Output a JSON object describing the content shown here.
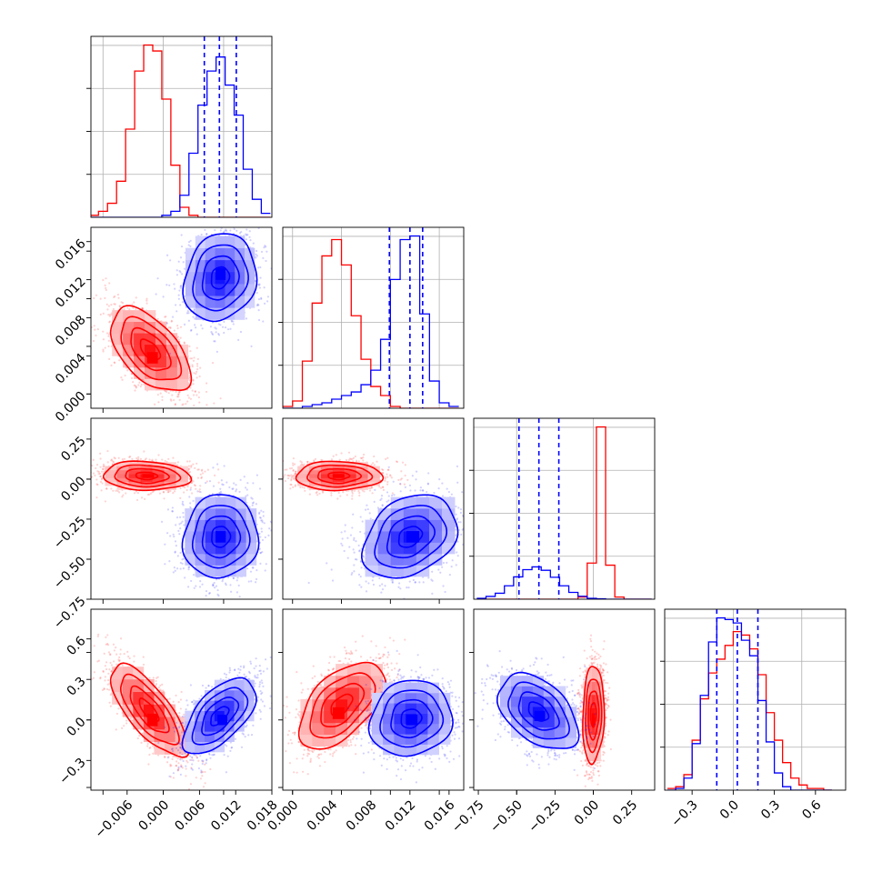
{
  "figure": {
    "type": "corner-plot",
    "n_parameters": 4,
    "colors": {
      "series_red": "#ff0000",
      "series_blue": "#0000ff"
    }
  },
  "chart_data": [
    {
      "type": "histogram",
      "panel": "diag-0",
      "grid": true,
      "xlim": [
        -0.012,
        0.018
      ],
      "xticks": [],
      "x": [
        -0.0115,
        -0.01,
        -0.0085,
        -0.007,
        -0.0055,
        -0.004,
        -0.0025,
        -0.001,
        0.0005,
        0.002,
        0.0035,
        0.005,
        0.0065,
        0.008,
        0.0095,
        0.011,
        0.0125,
        0.014,
        0.0155,
        0.017
      ],
      "series": [
        {
          "color": "#ff0000",
          "values": [
            0.01,
            0.03,
            0.07,
            0.18,
            0.44,
            0.73,
            0.86,
            0.83,
            0.59,
            0.26,
            0.05,
            0.01,
            0,
            0,
            0,
            0,
            0,
            0,
            0,
            0
          ]
        },
        {
          "color": "#0000ff",
          "values": [
            0,
            0,
            0,
            0,
            0,
            0,
            0,
            0,
            0.01,
            0.03,
            0.11,
            0.32,
            0.56,
            0.73,
            0.8,
            0.66,
            0.51,
            0.24,
            0.09,
            0.02
          ]
        }
      ],
      "quantile_lines": {
        "color": "#0000ff",
        "values": [
          0.0068,
          0.0093,
          0.0121
        ]
      }
    },
    {
      "type": "histogram",
      "panel": "diag-1",
      "grid": true,
      "xlim": [
        -0.001,
        0.0175
      ],
      "xticks": [],
      "x": [
        -0.0005,
        0.0005,
        0.0015,
        0.0025,
        0.0035,
        0.0045,
        0.0055,
        0.0065,
        0.0075,
        0.0085,
        0.0095,
        0.0105,
        0.0115,
        0.0125,
        0.0135,
        0.0145,
        0.0155,
        0.0165
      ],
      "series": [
        {
          "color": "#ff0000",
          "values": [
            0.01,
            0.04,
            0.26,
            0.58,
            0.84,
            0.93,
            0.79,
            0.51,
            0.27,
            0.12,
            0.07,
            0.01,
            0,
            0,
            0,
            0,
            0,
            0
          ]
        },
        {
          "color": "#0000ff",
          "values": [
            0,
            0,
            0.01,
            0.02,
            0.03,
            0.05,
            0.07,
            0.09,
            0.13,
            0.21,
            0.38,
            0.71,
            0.93,
            0.95,
            0.52,
            0.15,
            0.03,
            0.01
          ]
        }
      ],
      "quantile_lines": {
        "color": "#0000ff",
        "values": [
          0.0099,
          0.012,
          0.0133
        ]
      }
    },
    {
      "type": "histogram",
      "panel": "diag-2",
      "grid": true,
      "xlim": [
        -0.78,
        0.4
      ],
      "xticks": [],
      "x": [
        -0.73,
        -0.67,
        -0.61,
        -0.55,
        -0.49,
        -0.43,
        -0.37,
        -0.31,
        -0.25,
        -0.19,
        -0.13,
        -0.07,
        -0.01,
        0.05,
        0.11,
        0.17,
        0.23,
        0.29,
        0.35
      ],
      "series": [
        {
          "color": "#ff0000",
          "values": [
            0,
            0,
            0,
            0,
            0,
            0,
            0,
            0,
            0,
            0,
            0,
            0.01,
            0.17,
            0.81,
            0.16,
            0.01,
            0,
            0,
            0
          ]
        },
        {
          "color": "#0000ff",
          "values": [
            0.004,
            0.013,
            0.028,
            0.063,
            0.105,
            0.139,
            0.152,
            0.136,
            0.103,
            0.063,
            0.032,
            0.014,
            0.004,
            0.002,
            0,
            0,
            0,
            0,
            0
          ]
        }
      ],
      "quantile_lines": {
        "color": "#0000ff",
        "values": [
          -0.485,
          -0.355,
          -0.225
        ]
      }
    },
    {
      "type": "histogram",
      "panel": "diag-3",
      "grid": true,
      "xlim": [
        -0.5,
        0.82
      ],
      "xticks": [
        "-0.3",
        "0.0",
        "0.3",
        "0.6"
      ],
      "x": [
        -0.45,
        -0.39,
        -0.33,
        -0.27,
        -0.21,
        -0.15,
        -0.09,
        -0.03,
        0.03,
        0.09,
        0.15,
        0.21,
        0.27,
        0.33,
        0.39,
        0.45,
        0.51,
        0.57,
        0.63,
        0.69
      ],
      "series": [
        {
          "color": "#ff0000",
          "values": [
            0.01,
            0.02,
            0.09,
            0.29,
            0.53,
            0.68,
            0.76,
            0.84,
            0.92,
            0.9,
            0.82,
            0.67,
            0.45,
            0.29,
            0.16,
            0.07,
            0.03,
            0.01,
            0.01,
            0
          ]
        },
        {
          "color": "#0000ff",
          "values": [
            0,
            0.01,
            0.07,
            0.27,
            0.55,
            0.86,
            1.0,
            0.99,
            0.97,
            0.87,
            0.78,
            0.52,
            0.28,
            0.1,
            0.02,
            0,
            0,
            0,
            0,
            0
          ]
        }
      ],
      "quantile_lines": {
        "color": "#0000ff",
        "values": [
          -0.12,
          0.03,
          0.18
        ]
      }
    },
    {
      "type": "scatter-contour",
      "panel": "r1c0",
      "xlim": [
        -0.012,
        0.018
      ],
      "ylim": [
        -0.0015,
        0.0175
      ],
      "yticks": [
        "0.000",
        "0.004",
        "0.008",
        "0.012",
        "0.016"
      ],
      "series": [
        {
          "color": "#ff0000",
          "center": [
            -0.0022,
            0.0046
          ],
          "sigma": [
            0.0033,
            0.0022
          ],
          "rho": -0.55,
          "max_bin": [
            -0.0018,
            0.0038
          ]
        },
        {
          "color": "#0000ff",
          "center": [
            0.0094,
            0.0122
          ],
          "sigma": [
            0.003,
            0.0023
          ],
          "rho": 0.15,
          "max_bin": [
            0.0095,
            0.0126
          ]
        }
      ]
    },
    {
      "type": "scatter-contour",
      "panel": "r2c0",
      "xlim": [
        -0.012,
        0.018
      ],
      "ylim": [
        -0.75,
        0.38
      ],
      "yticks": [
        "-0.75",
        "-0.50",
        "-0.25",
        "0.00",
        "0.25"
      ],
      "series": [
        {
          "color": "#ff0000",
          "center": [
            -0.0028,
            0.02
          ],
          "sigma": [
            0.0036,
            0.045
          ],
          "rho": -0.1,
          "max_bin": [
            -0.0025,
            0.02
          ]
        },
        {
          "color": "#0000ff",
          "center": [
            0.0095,
            -0.36
          ],
          "sigma": [
            0.0031,
            0.13
          ],
          "rho": 0.05,
          "max_bin": [
            0.0095,
            -0.36
          ]
        }
      ]
    },
    {
      "type": "scatter-contour",
      "panel": "r2c1",
      "xlim": [
        -0.001,
        0.0175
      ],
      "ylim": [
        -0.75,
        0.38
      ],
      "series": [
        {
          "color": "#ff0000",
          "center": [
            0.0047,
            0.02
          ],
          "sigma": [
            0.0022,
            0.045
          ],
          "rho": 0.0,
          "max_bin": [
            0.0047,
            0.02
          ]
        },
        {
          "color": "#0000ff",
          "center": [
            0.012,
            -0.36
          ],
          "sigma": [
            0.0024,
            0.13
          ],
          "rho": 0.3,
          "max_bin": [
            0.0123,
            -0.36
          ]
        }
      ]
    },
    {
      "type": "scatter-contour",
      "panel": "r3c0",
      "xlim": [
        -0.012,
        0.018
      ],
      "ylim": [
        -0.52,
        0.82
      ],
      "yticks": [
        "-0.3",
        "0.0",
        "0.3",
        "0.6"
      ],
      "xticks": [
        "-0.006",
        "0.000",
        "0.006",
        "0.012",
        "0.018"
      ],
      "series": [
        {
          "color": "#ff0000",
          "center": [
            -0.0024,
            0.07
          ],
          "sigma": [
            0.0032,
            0.17
          ],
          "rho": -0.75,
          "max_bin": [
            -0.0018,
            0.0
          ]
        },
        {
          "color": "#0000ff",
          "center": [
            0.0093,
            0.03
          ],
          "sigma": [
            0.003,
            0.14
          ],
          "rho": 0.6,
          "max_bin": [
            0.0098,
            0.0
          ]
        }
      ]
    },
    {
      "type": "scatter-contour",
      "panel": "r3c1",
      "xlim": [
        -0.001,
        0.0175
      ],
      "ylim": [
        -0.52,
        0.82
      ],
      "xticks": [
        "0.000",
        "0.004",
        "0.008",
        "0.012",
        "0.016"
      ],
      "series": [
        {
          "color": "#ff0000",
          "center": [
            0.005,
            0.11
          ],
          "sigma": [
            0.0022,
            0.16
          ],
          "rho": 0.55,
          "max_bin": [
            0.0047,
            0.05
          ]
        },
        {
          "color": "#0000ff",
          "center": [
            0.0121,
            0.01
          ],
          "sigma": [
            0.0021,
            0.14
          ],
          "rho": 0.1,
          "max_bin": [
            0.0122,
            0.0
          ]
        }
      ]
    },
    {
      "type": "scatter-contour",
      "panel": "r3c2",
      "xlim": [
        -0.78,
        0.4
      ],
      "ylim": [
        -0.52,
        0.82
      ],
      "xticks": [
        "-0.75",
        "-0.50",
        "-0.25",
        "0.00",
        "0.25"
      ],
      "series": [
        {
          "color": "#ff0000",
          "center": [
            0.0,
            0.04
          ],
          "sigma": [
            0.035,
            0.18
          ],
          "rho": 0.1,
          "max_bin": [
            0.0,
            0.0
          ]
        },
        {
          "color": "#0000ff",
          "center": [
            -0.36,
            0.06
          ],
          "sigma": [
            0.13,
            0.14
          ],
          "rho": -0.45,
          "max_bin": [
            -0.35,
            0.03
          ]
        }
      ]
    }
  ]
}
